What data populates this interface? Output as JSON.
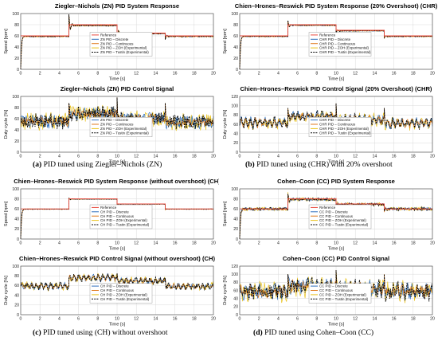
{
  "figure": {
    "captions": [
      {
        "letter": "(a)",
        "text": "PID tuned using Ziegler–Nichols (ZN)"
      },
      {
        "letter": "(b)",
        "text": "PID tuned using (CHR) with 20% overshoot"
      },
      {
        "letter": "(c)",
        "text": "PID tuned using (CH) without overshoot"
      },
      {
        "letter": "(d)",
        "text": "PID tuned using Cohen–Coon (CC)"
      }
    ]
  },
  "colors": {
    "reference": "#e8473b",
    "discrete": "#2f6fbd",
    "continuous": "#e07b1f",
    "zoh": "#e9c21e",
    "tustin": "#000000",
    "grid": "#d9d9d9",
    "axis": "#444444"
  },
  "chart_data": [
    {
      "type": "line",
      "title": "Ziegler–Nichols (ZN) PID System Response",
      "xlabel": "Time [s]",
      "ylabel": "Speed [rpm]",
      "xlim": [
        0,
        20
      ],
      "ylim": [
        0,
        100
      ],
      "xticks": [
        0,
        2,
        4,
        6,
        8,
        10,
        12,
        14,
        16,
        18,
        20
      ],
      "yticks": [
        0,
        20,
        40,
        60,
        80,
        100
      ],
      "grid": true,
      "legend_position": "center",
      "legend": [
        "Reference",
        "ZN PID – Discrete",
        "ZN PID – Continuous",
        "ZN PID – ZOH (Experimental)",
        "ZN PID – Tustin (Experimental)"
      ],
      "reference": {
        "x": [
          0,
          5,
          5,
          10,
          10,
          15,
          15,
          20
        ],
        "y": [
          60,
          60,
          80,
          80,
          65,
          65,
          60,
          60
        ]
      },
      "response": {
        "segments": [
          [
            0,
            5,
            58,
            60
          ],
          [
            5,
            10,
            77,
            80
          ],
          [
            10,
            15,
            63,
            65
          ],
          [
            15,
            20,
            58,
            60
          ]
        ],
        "overshoot": 20,
        "noise": 2
      }
    },
    {
      "type": "line",
      "title": "Ziegler–Nichols (ZN) PID Control Signal",
      "xlabel": "Time [s]",
      "ylabel": "Duty cycle [%]",
      "xlim": [
        0,
        20
      ],
      "ylim": [
        0,
        100
      ],
      "xticks": [
        0,
        2,
        4,
        6,
        8,
        10,
        12,
        14,
        16,
        18,
        20
      ],
      "yticks": [
        0,
        20,
        40,
        60,
        80,
        100
      ],
      "grid": true,
      "legend_position": "center",
      "legend": [
        "ZN PID – Discrete",
        "ZN PID – Continuous",
        "ZN PID – ZOH (Experimental)",
        "ZN PID – Tustin (Experimental)"
      ],
      "control": {
        "segments": [
          [
            0,
            5,
            52,
            58
          ],
          [
            5,
            10,
            66,
            72
          ],
          [
            10,
            15,
            58,
            62
          ],
          [
            15,
            20,
            52,
            56
          ]
        ],
        "spike": 98,
        "noise": 12
      }
    },
    {
      "type": "line",
      "title": "Chien–Hrones–Reswick  PID System Response (20% Overshoot) (CHR)",
      "xlabel": "Time [s]",
      "ylabel": "Speed [rpm]",
      "xlim": [
        0,
        20
      ],
      "ylim": [
        0,
        100
      ],
      "xticks": [
        0,
        2,
        4,
        6,
        8,
        10,
        12,
        14,
        16,
        18,
        20
      ],
      "yticks": [
        0,
        20,
        40,
        60,
        80,
        100
      ],
      "grid": true,
      "legend_position": "center",
      "legend": [
        "Reference",
        "CHR PID – Discrete",
        "CHR PID – Continuous",
        "CHR PID – ZOH (Experimental)",
        "CHR PID – Tustin (Experimental)"
      ],
      "reference": {
        "x": [
          0,
          5,
          5,
          10,
          10,
          15,
          15,
          20
        ],
        "y": [
          60,
          60,
          80,
          80,
          70,
          70,
          60,
          60
        ]
      },
      "response": {
        "segments": [
          [
            0,
            5,
            58,
            60
          ],
          [
            5,
            10,
            78,
            80
          ],
          [
            10,
            15,
            68,
            70
          ],
          [
            15,
            20,
            58,
            60
          ]
        ],
        "overshoot": 8,
        "noise": 1.5
      }
    },
    {
      "type": "line",
      "title": "Chien–Hrones–Reswick PID Control Signal (20% Overshoot) (CHR)",
      "xlabel": "Time [s]",
      "ylabel": "Duty cycle [%]",
      "xlim": [
        0,
        20
      ],
      "ylim": [
        0,
        120
      ],
      "xticks": [
        0,
        2,
        4,
        6,
        8,
        10,
        12,
        14,
        16,
        18,
        20
      ],
      "yticks": [
        0,
        20,
        40,
        60,
        80,
        100,
        120
      ],
      "grid": true,
      "legend_position": "center",
      "legend": [
        "CHR  PID – Discrete",
        "CHR PID – Continuous",
        "CHR PID – ZOH (Experimental)",
        "CHR PID – Tustin (Experimental)"
      ],
      "control": {
        "segments": [
          [
            0,
            5,
            56,
            70
          ],
          [
            5,
            10,
            72,
            82
          ],
          [
            10,
            15,
            64,
            76
          ],
          [
            15,
            20,
            56,
            68
          ]
        ],
        "spike": 105,
        "noise": 8
      }
    },
    {
      "type": "line",
      "title": "Chien–Hrones–Reswick  PID System Response (without overshoot) (CH)",
      "xlabel": "Time [s]",
      "ylabel": "Speed [rpm]",
      "xlim": [
        0,
        20
      ],
      "ylim": [
        0,
        100
      ],
      "xticks": [
        0,
        2,
        4,
        6,
        8,
        10,
        12,
        14,
        16,
        18,
        20
      ],
      "yticks": [
        0,
        20,
        40,
        60,
        80,
        100
      ],
      "grid": true,
      "legend_position": "center",
      "legend": [
        "Reference",
        "CH  PID – Discrete",
        "CH PID – Continuous",
        "CH PID – ZOH (Experimental)",
        "CH PID – Tustin (Experimental)"
      ],
      "reference": {
        "x": [
          0,
          5,
          5,
          10,
          10,
          15,
          15,
          20
        ],
        "y": [
          60,
          60,
          80,
          80,
          70,
          70,
          60,
          60
        ]
      },
      "response": {
        "segments": [
          [
            0,
            5,
            59,
            60
          ],
          [
            5,
            10,
            79,
            80
          ],
          [
            10,
            15,
            69,
            70
          ],
          [
            15,
            20,
            59,
            60
          ]
        ],
        "overshoot": 2,
        "noise": 1
      }
    },
    {
      "type": "line",
      "title": "Chien–Hrones–Reswick PID Control Signal (without overshoot) (CH)",
      "xlabel": "Time [s]",
      "ylabel": "Duty cycle [%]",
      "xlim": [
        0,
        20
      ],
      "ylim": [
        0,
        100
      ],
      "xticks": [
        0,
        2,
        4,
        6,
        8,
        10,
        12,
        14,
        16,
        18,
        20
      ],
      "yticks": [
        0,
        20,
        40,
        60,
        80,
        100
      ],
      "grid": true,
      "legend_position": "center",
      "legend": [
        "CH  PID – Discrete",
        "CH PID – Continuous",
        "CH PID – ZOH (Experimental)",
        "CH PID – Tustin (Experimental)"
      ],
      "control": {
        "segments": [
          [
            0,
            5,
            55,
            63
          ],
          [
            5,
            10,
            72,
            80
          ],
          [
            10,
            15,
            66,
            73
          ],
          [
            15,
            20,
            55,
            62
          ]
        ],
        "spike": 85,
        "noise": 5
      }
    },
    {
      "type": "line",
      "title": "Cohen–Coon (CC) PID System Response",
      "xlabel": "Time [s]",
      "ylabel": "Speed [rpm]",
      "xlim": [
        0,
        20
      ],
      "ylim": [
        0,
        100
      ],
      "xticks": [
        0,
        2,
        4,
        6,
        8,
        10,
        12,
        14,
        16,
        18,
        20
      ],
      "yticks": [
        0,
        20,
        40,
        60,
        80,
        100
      ],
      "grid": true,
      "legend_position": "center",
      "legend": [
        "Reference",
        "CC  PID – Discrete",
        "CC PID – Continuous",
        "CC PID – ZOH (Experimental)",
        "CC PID – Tustin (Experimental)"
      ],
      "reference": {
        "x": [
          0,
          5,
          5,
          10,
          10,
          15,
          15,
          20
        ],
        "y": [
          60,
          60,
          80,
          80,
          70,
          70,
          60,
          60
        ]
      },
      "response": {
        "segments": [
          [
            0,
            5,
            60,
            60
          ],
          [
            5,
            10,
            78,
            80
          ],
          [
            10,
            15,
            68,
            70
          ],
          [
            15,
            20,
            60,
            60
          ]
        ],
        "overshoot": 12,
        "noise": 6
      }
    },
    {
      "type": "line",
      "title": "Cohen–Coon (CC) PID Control Signal",
      "xlabel": "Time [s]",
      "ylabel": "Duty cycle [%]",
      "xlim": [
        0,
        20
      ],
      "ylim": [
        0,
        120
      ],
      "xticks": [
        0,
        2,
        4,
        6,
        8,
        10,
        12,
        14,
        16,
        18,
        20
      ],
      "yticks": [
        0,
        20,
        40,
        60,
        80,
        100,
        120
      ],
      "grid": true,
      "legend_position": "center",
      "legend": [
        "CC  PID – Discrete",
        "CC PID – Continuous",
        "CC PID – ZOH (Experimental)",
        "CC PID – Tustin (Experimental)"
      ],
      "control": {
        "segments": [
          [
            0,
            5,
            50,
            65
          ],
          [
            5,
            10,
            62,
            78
          ],
          [
            10,
            15,
            56,
            72
          ],
          [
            15,
            20,
            50,
            65
          ]
        ],
        "spike": 110,
        "noise": 18
      }
    }
  ]
}
